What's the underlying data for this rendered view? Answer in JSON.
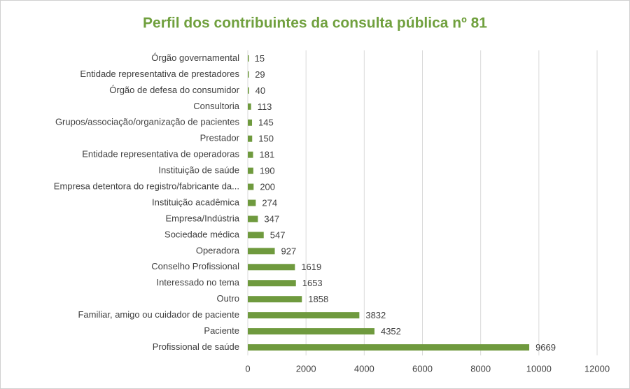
{
  "chart_data": {
    "type": "barh",
    "title": "Perfil dos contribuintes da consulta pública nº 81",
    "categories": [
      "Órgão governamental",
      "Entidade representativa de prestadores",
      "Órgão de defesa do consumidor",
      "Consultoria",
      "Grupos/associação/organização de pacientes",
      "Prestador",
      "Entidade representativa de operadoras",
      "Instituição de saúde",
      "Empresa detentora do registro/fabricante da...",
      "Instituição acadêmica",
      "Empresa/Indústria",
      "Sociedade médica",
      "Operadora",
      "Conselho Profissional",
      "Interessado no tema",
      "Outro",
      "Familiar, amigo ou cuidador de paciente",
      "Paciente",
      "Profissional de saúde"
    ],
    "values": [
      15,
      29,
      40,
      113,
      145,
      150,
      181,
      190,
      200,
      274,
      347,
      547,
      927,
      1619,
      1653,
      1858,
      3832,
      4352,
      9669
    ],
    "color": "#6f9a3e",
    "xlim": [
      0,
      12000
    ],
    "xticks": [
      0,
      2000,
      4000,
      6000,
      8000,
      10000,
      12000
    ],
    "grid": true
  }
}
